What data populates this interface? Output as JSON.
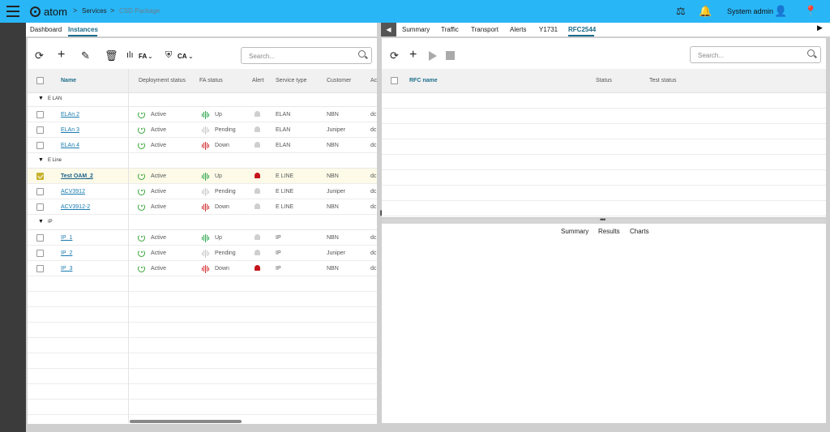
{
  "header": {
    "app_name": "atom",
    "breadcrumb": [
      "Services",
      "CSD Package"
    ],
    "user_name": "System admin",
    "icons": [
      "menu-icon",
      "gavel-icon",
      "bell-icon",
      "user-icon",
      "location-pin-icon"
    ]
  },
  "left_tabs": [
    {
      "label": "Dashboard",
      "active": false
    },
    {
      "label": "Instances",
      "active": true
    }
  ],
  "left_toolbar": {
    "fa_label": "FA",
    "ca_label": "CA",
    "search_placeholder": "Search..."
  },
  "table": {
    "columns": [
      "Name",
      "Deployment status",
      "FA status",
      "Alert",
      "Service type",
      "Customer",
      "Ac"
    ],
    "groups": [
      {
        "label": "E LAN",
        "rows": [
          {
            "name": "ELAn 2",
            "deployment": "Active",
            "fa": "Up",
            "fa_color": "#2fa84f",
            "alert": false,
            "service": "ELAN",
            "customer": "NBN",
            "acc": "dc",
            "selected": false
          },
          {
            "name": "ELAn 3",
            "deployment": "Active",
            "fa": "Pending",
            "fa_color": "#c8c8c8",
            "alert": false,
            "service": "ELAN",
            "customer": "Juniper",
            "acc": "dc",
            "selected": false
          },
          {
            "name": "ELAn 4",
            "deployment": "Active",
            "fa": "Down",
            "fa_color": "#d32f2f",
            "alert": false,
            "service": "ELAN",
            "customer": "NBN",
            "acc": "dc",
            "selected": false
          }
        ]
      },
      {
        "label": "E Line",
        "rows": [
          {
            "name": "Test OAM_2",
            "deployment": "Active",
            "fa": "Up",
            "fa_color": "#2fa84f",
            "alert": true,
            "service": "E LINE",
            "customer": "NBN",
            "acc": "dc",
            "selected": true
          },
          {
            "name": "ACV3912",
            "deployment": "Active",
            "fa": "Pending",
            "fa_color": "#c8c8c8",
            "alert": false,
            "service": "E LINE",
            "customer": "Juniper",
            "acc": "dc",
            "selected": false
          },
          {
            "name": "ACV3912-2",
            "deployment": "Active",
            "fa": "Down",
            "fa_color": "#d32f2f",
            "alert": false,
            "service": "E LINE",
            "customer": "NBN",
            "acc": "dc",
            "selected": false
          }
        ]
      },
      {
        "label": "IP",
        "rows": [
          {
            "name": "IP_1",
            "deployment": "Active",
            "fa": "Up",
            "fa_color": "#2fa84f",
            "alert": false,
            "service": "IP",
            "customer": "NBN",
            "acc": "dc",
            "selected": false
          },
          {
            "name": "IP_2",
            "deployment": "Active",
            "fa": "Pending",
            "fa_color": "#c8c8c8",
            "alert": false,
            "service": "IP",
            "customer": "Juniper",
            "acc": "dc",
            "selected": false
          },
          {
            "name": "IP_3",
            "deployment": "Active",
            "fa": "Down",
            "fa_color": "#d32f2f",
            "alert": true,
            "service": "IP",
            "customer": "NBN",
            "acc": "dc",
            "selected": false
          }
        ]
      }
    ]
  },
  "right_tabs": [
    {
      "label": "Summary",
      "active": false
    },
    {
      "label": "Traffic",
      "active": false
    },
    {
      "label": "Transport",
      "active": false
    },
    {
      "label": "Alerts",
      "active": false
    },
    {
      "label": "Y1731",
      "active": false
    },
    {
      "label": "RFC2544",
      "active": true
    }
  ],
  "right_toolbar": {
    "search_placeholder": "Search..."
  },
  "rfc_table": {
    "columns": [
      "RFC name",
      "Status",
      "Test status"
    ]
  },
  "bottom_tabs": [
    "Summary",
    "Results",
    "Charts"
  ]
}
